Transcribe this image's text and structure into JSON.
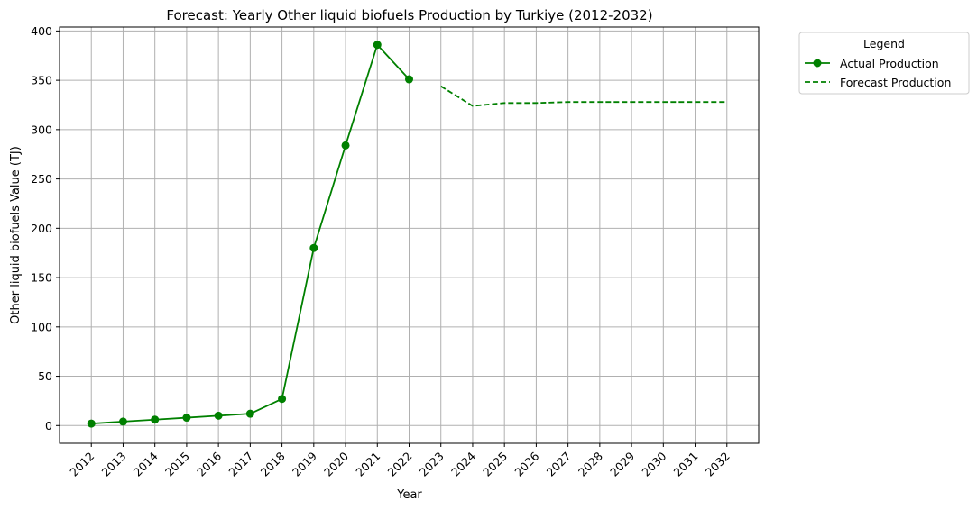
{
  "chart_data": {
    "type": "line",
    "title": "Forecast: Yearly Other liquid biofuels Production by Turkiye (2012-2032)",
    "xlabel": "Year",
    "ylabel": "Other liquid biofuels Value (TJ)",
    "x_ticks": [
      "2012",
      "2013",
      "2014",
      "2015",
      "2016",
      "2017",
      "2018",
      "2019",
      "2020",
      "2021",
      "2022",
      "2023",
      "2024",
      "2025",
      "2026",
      "2027",
      "2028",
      "2029",
      "2030",
      "2031",
      "2032"
    ],
    "xlim": [
      2011,
      2033
    ],
    "ylim": [
      -18,
      404
    ],
    "y_ticks": [
      0,
      50,
      100,
      150,
      200,
      250,
      300,
      350,
      400
    ],
    "grid": true,
    "legend_title": "Legend",
    "legend_position": "outside-right",
    "series": [
      {
        "name": "Actual Production",
        "style": "solid",
        "marker": "circle",
        "color": "#008000",
        "x": [
          2012,
          2013,
          2014,
          2015,
          2016,
          2017,
          2018,
          2019,
          2020,
          2021,
          2022
        ],
        "y": [
          2,
          4,
          6,
          8,
          10,
          12,
          27,
          180,
          284,
          386,
          351
        ]
      },
      {
        "name": "Forecast Production",
        "style": "dashed",
        "marker": "none",
        "color": "#008000",
        "x": [
          2023,
          2024,
          2025,
          2026,
          2027,
          2028,
          2029,
          2030,
          2031,
          2032
        ],
        "y": [
          344,
          324,
          327,
          327,
          328,
          328,
          328,
          328,
          328,
          328
        ]
      }
    ]
  }
}
